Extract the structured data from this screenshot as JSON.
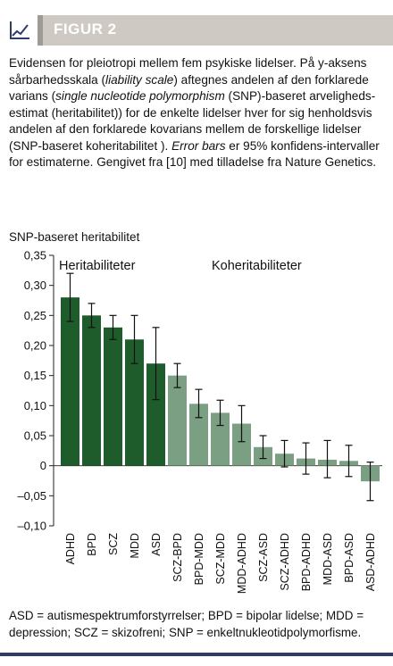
{
  "header": {
    "title": "FIGUR 2",
    "icon": "line-chart-icon",
    "bg_color": "#cfc9c4"
  },
  "caption": {
    "p1": "Evidensen for pleiotropi mellem fem psykiske lidelser. På y-aksens sårbarhedsskala (",
    "i1": "liability scale",
    "p2": ") aftegnes andelen af den forklarede varians (",
    "i2": "single nucleotide polymorphism",
    "p3": " (SNP)-baseret arveligheds­estimat (heritabilitet)) for de enkelte lidelser hver for sig henholdsvis andelen af den forklarede kovarians mellem de forskellige lidelser (SNP-baseret koheritabilitet ). ",
    "i3": "Error bars",
    "p4": " er 95% konfidens-intervaller for estimaterne. Gengivet fra [10] med tilladelse fra Nature Genetics."
  },
  "chart_data": {
    "type": "bar",
    "ylabel": "SNP-baseret heritabilitet",
    "ylim": [
      -0.1,
      0.35
    ],
    "yticks": [
      "0,35",
      "0,30",
      "0,25",
      "0,20",
      "0,15",
      "0,10",
      "0,05",
      "0",
      "–0,05",
      "–0,10"
    ],
    "ytick_values": [
      0.35,
      0.3,
      0.25,
      0.2,
      0.15,
      0.1,
      0.05,
      0,
      -0.05,
      -0.1
    ],
    "categories": [
      "ADHD",
      "BPD",
      "SCZ",
      "MDD",
      "ASD",
      "SCZ-BPD",
      "BPD-MDD",
      "SCZ-MDD",
      "MDD-ADHD",
      "SCZ-ASD",
      "SCZ-ADHD",
      "BPD-ADHD",
      "MDD-ASD",
      "BPD-ASD",
      "ASD-ADHD"
    ],
    "series": [
      {
        "values": [
          0.28,
          0.25,
          0.23,
          0.21,
          0.17,
          0.15,
          0.103,
          0.088,
          0.07,
          0.031,
          0.02,
          0.012,
          0.01,
          0.008,
          -0.026
        ],
        "error_low": [
          0.24,
          0.23,
          0.21,
          0.17,
          0.11,
          0.13,
          0.08,
          0.067,
          0.04,
          0.012,
          -0.002,
          -0.014,
          -0.02,
          -0.018,
          -0.058
        ],
        "error_high": [
          0.32,
          0.27,
          0.25,
          0.25,
          0.23,
          0.17,
          0.127,
          0.109,
          0.1,
          0.05,
          0.042,
          0.038,
          0.042,
          0.034,
          0.006
        ],
        "colors": [
          "#1f5c2c",
          "#1f5c2c",
          "#1f5c2c",
          "#1f5c2c",
          "#1f5c2c",
          "#7a9f82",
          "#7a9f82",
          "#7a9f82",
          "#7a9f82",
          "#7a9f82",
          "#7a9f82",
          "#7a9f82",
          "#7a9f82",
          "#7a9f82",
          "#7a9f82"
        ]
      }
    ],
    "annotations": [
      "Heritabiliteter",
      "Koheritabiliteter"
    ],
    "grid": false,
    "dark_color": "#1f5c2c",
    "light_color": "#7a9f82"
  },
  "footnote": "ASD = autismespektrumforstyrrelser;  BPD = bipolar lidelse;  MDD = depression;  SCZ = skizofreni;  SNP = enkeltnukleotidpolymorfisme.",
  "rule_color": "#2e3c67"
}
